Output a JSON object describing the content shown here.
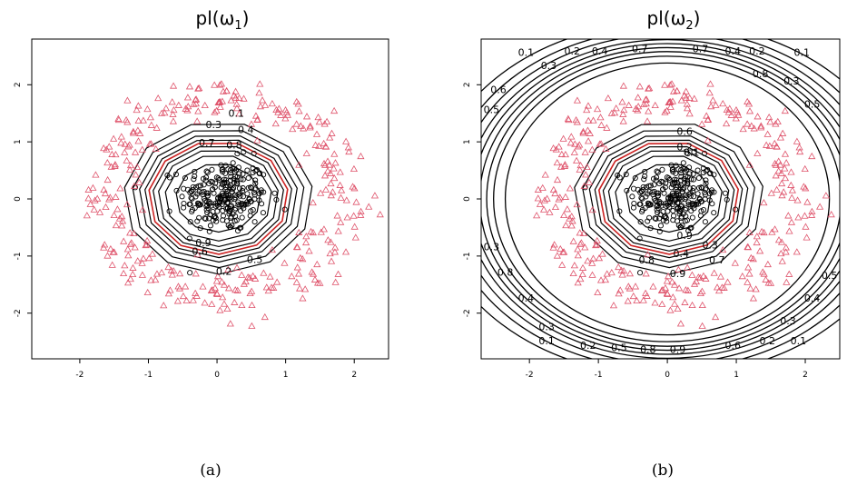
{
  "figure": {
    "background": "#ffffff",
    "colors": {
      "triangle": "#df536b",
      "circle": "#000000",
      "contour": "#000000",
      "highlight": "#cc2222"
    }
  },
  "chart_data": [
    {
      "type": "contour",
      "title": "pl(ω",
      "title_sub": "1",
      "title_close": ")",
      "caption": "(a)",
      "xlim": [
        -2.7,
        2.5
      ],
      "ylim": [
        -2.8,
        2.8
      ],
      "xticks": [
        "-2",
        "-1",
        "0",
        "1",
        "2"
      ],
      "yticks": [
        "-2",
        "-1",
        "0",
        "1",
        "2"
      ],
      "x_tick_values": [
        -2,
        -1,
        0,
        1,
        2
      ],
      "y_tick_values": [
        -2,
        -1,
        0,
        1,
        2
      ],
      "series": [
        {
          "marker": "circle",
          "cluster": "inner",
          "n": 260,
          "sd": 0.32,
          "center": [
            0.1,
            0.05
          ]
        },
        {
          "marker": "triangle",
          "cluster": "ring",
          "n": 340,
          "radius": 1.72,
          "sd": 0.22
        }
      ],
      "contours": [
        {
          "level": 0.1,
          "radius": 1.38
        },
        {
          "level": 0.2,
          "radius": 1.26
        },
        {
          "level": 0.3,
          "radius": 1.16
        },
        {
          "level": 0.4,
          "radius": 1.08
        },
        {
          "level": 0.5,
          "radius": 1.02,
          "highlight": true
        },
        {
          "level": 0.6,
          "radius": 0.96
        },
        {
          "level": 0.7,
          "radius": 0.88
        },
        {
          "level": 0.8,
          "radius": 0.78
        },
        {
          "level": 0.9,
          "radius": 0.62
        }
      ],
      "contour_labels": [
        {
          "text": "0.1",
          "x": 0.28,
          "y": 1.49
        },
        {
          "text": "0.3",
          "x": -0.05,
          "y": 1.29
        },
        {
          "text": "0.4",
          "x": 0.42,
          "y": 1.2
        },
        {
          "text": "0.7",
          "x": -0.15,
          "y": 0.97
        },
        {
          "text": "0.8",
          "x": 0.25,
          "y": 0.93
        },
        {
          "text": "0.9",
          "x": -0.2,
          "y": -0.78
        },
        {
          "text": "0.6",
          "x": -0.25,
          "y": -0.93
        },
        {
          "text": "0.5",
          "x": 0.55,
          "y": -1.07
        },
        {
          "text": "0.2",
          "x": 0.1,
          "y": -1.28
        }
      ]
    },
    {
      "type": "contour",
      "title": "pl(ω",
      "title_sub": "2",
      "title_close": ")",
      "caption": "(b)",
      "xlim": [
        -2.7,
        2.5
      ],
      "ylim": [
        -2.8,
        2.8
      ],
      "xticks": [
        "-2",
        "-1",
        "0",
        "1",
        "2"
      ],
      "yticks": [
        "-2",
        "-1",
        "0",
        "1",
        "2"
      ],
      "x_tick_values": [
        -2,
        -1,
        0,
        1,
        2
      ],
      "y_tick_values": [
        -2,
        -1,
        0,
        1,
        2
      ],
      "series": [
        {
          "marker": "circle",
          "cluster": "inner",
          "n": 260,
          "sd": 0.32,
          "center": [
            0.1,
            0.05
          ]
        },
        {
          "marker": "triangle",
          "cluster": "ring",
          "n": 340,
          "radius": 1.72,
          "sd": 0.22
        }
      ],
      "contours": [
        {
          "level": 0.1,
          "radius": 0.62
        },
        {
          "level": 0.2,
          "radius": 0.78
        },
        {
          "level": 0.3,
          "radius": 0.88
        },
        {
          "level": 0.4,
          "radius": 0.96
        },
        {
          "level": 0.5,
          "radius": 1.02,
          "highlight": true
        },
        {
          "level": 0.6,
          "radius": 1.08
        },
        {
          "level": 0.7,
          "radius": 1.16
        },
        {
          "level": 0.8,
          "radius": 1.26
        },
        {
          "level": 0.9,
          "radius": 1.38
        }
      ],
      "outer_contours": [
        {
          "level": 0.9,
          "rx": 2.35,
          "ry": 2.38
        },
        {
          "level": 0.8,
          "rx": 2.52,
          "ry": 2.5
        },
        {
          "level": 0.7,
          "rx": 2.62,
          "ry": 2.58
        },
        {
          "level": 0.6,
          "rx": 2.72,
          "ry": 2.65
        },
        {
          "level": 0.5,
          "rx": 2.82,
          "ry": 2.72
        },
        {
          "level": 0.4,
          "rx": 2.92,
          "ry": 2.79
        },
        {
          "level": 0.3,
          "rx": 3.05,
          "ry": 2.88
        },
        {
          "level": 0.2,
          "rx": 3.2,
          "ry": 2.98
        },
        {
          "level": 0.1,
          "rx": 3.4,
          "ry": 3.1
        }
      ],
      "contour_labels": [
        {
          "text": "0.1",
          "x": 0.35,
          "y": 0.8
        },
        {
          "text": "0.6",
          "x": 0.25,
          "y": 1.17
        },
        {
          "text": "0.2",
          "x": 0.25,
          "y": 0.9
        },
        {
          "text": "0.9",
          "x": 0.25,
          "y": -0.65
        },
        {
          "text": "0.4",
          "x": 0.2,
          "y": -0.97
        },
        {
          "text": "0.3",
          "x": 0.62,
          "y": -0.82
        },
        {
          "text": "0.7",
          "x": 0.72,
          "y": -1.08
        },
        {
          "text": "0.8",
          "x": -0.3,
          "y": -1.08
        },
        {
          "text": "0.9",
          "x": 0.15,
          "y": -1.32
        },
        {
          "text": "0.1",
          "x": -2.05,
          "y": 2.55
        },
        {
          "text": "0.3",
          "x": -1.72,
          "y": 2.32
        },
        {
          "text": "0.2",
          "x": -1.38,
          "y": 2.58
        },
        {
          "text": "0.4",
          "x": -0.98,
          "y": 2.58
        },
        {
          "text": "0.7",
          "x": -0.4,
          "y": 2.62
        },
        {
          "text": "0.7",
          "x": 0.48,
          "y": 2.62
        },
        {
          "text": "0.4",
          "x": 0.95,
          "y": 2.58
        },
        {
          "text": "0.2",
          "x": 1.3,
          "y": 2.58
        },
        {
          "text": "0.1",
          "x": 1.95,
          "y": 2.55
        },
        {
          "text": "0.8",
          "x": 1.35,
          "y": 2.18
        },
        {
          "text": "0.3",
          "x": 1.8,
          "y": 2.05
        },
        {
          "text": "0.5",
          "x": 2.1,
          "y": 1.65
        },
        {
          "text": "0.5",
          "x": -2.55,
          "y": 1.55
        },
        {
          "text": "0.6",
          "x": -2.45,
          "y": 1.9
        },
        {
          "text": "0.3",
          "x": -2.55,
          "y": -0.85
        },
        {
          "text": "0.8",
          "x": -2.35,
          "y": -1.3
        },
        {
          "text": "0.4",
          "x": -2.05,
          "y": -1.75
        },
        {
          "text": "0.3",
          "x": -1.75,
          "y": -2.25
        },
        {
          "text": "0.1",
          "x": -1.75,
          "y": -2.5
        },
        {
          "text": "0.2",
          "x": -1.15,
          "y": -2.58
        },
        {
          "text": "0.5",
          "x": -0.7,
          "y": -2.62
        },
        {
          "text": "0.8",
          "x": -0.28,
          "y": -2.65
        },
        {
          "text": "0.9",
          "x": 0.15,
          "y": -2.65
        },
        {
          "text": "0.6",
          "x": 0.95,
          "y": -2.58
        },
        {
          "text": "0.2",
          "x": 1.45,
          "y": -2.5
        },
        {
          "text": "0.3",
          "x": 1.75,
          "y": -2.15
        },
        {
          "text": "0.4",
          "x": 2.1,
          "y": -1.75
        },
        {
          "text": "0.1",
          "x": 1.9,
          "y": -2.5
        },
        {
          "text": "0.5",
          "x": 2.35,
          "y": -1.35
        }
      ]
    }
  ]
}
